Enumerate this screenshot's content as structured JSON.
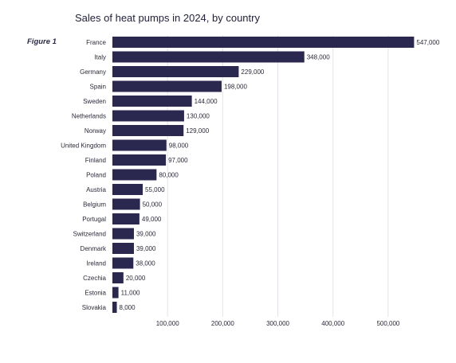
{
  "figure_label": "Figure 1",
  "chart_data": {
    "type": "bar",
    "orientation": "horizontal",
    "title": "Sales of heat pumps in 2024, by country",
    "xlabel": "",
    "ylabel": "",
    "categories": [
      "France",
      "Italy",
      "Germany",
      "Spain",
      "Sweden",
      "Netherlands",
      "Norway",
      "United Kingdom",
      "Finland",
      "Poland",
      "Austria",
      "Belgium",
      "Portugal",
      "Switzerland",
      "Denmark",
      "Ireland",
      "Czechia",
      "Estonia",
      "Slovakia"
    ],
    "values": [
      547000,
      348000,
      229000,
      198000,
      144000,
      130000,
      129000,
      98000,
      97000,
      80000,
      55000,
      50000,
      49000,
      39000,
      39000,
      38000,
      20000,
      11000,
      8000
    ],
    "value_labels": [
      "547,000",
      "348,000",
      "229,000",
      "198,000",
      "144,000",
      "130,000",
      "129,000",
      "98,000",
      "97,000",
      "80,000",
      "55,000",
      "50,000",
      "49,000",
      "39,000",
      "39,000",
      "38,000",
      "20,000",
      "11,000",
      "8,000"
    ],
    "xticks": [
      100000,
      200000,
      300000,
      400000,
      500000
    ],
    "xtick_labels": [
      "100,000",
      "200,000",
      "300,000",
      "400,000",
      "500,000"
    ],
    "xlim": [
      0,
      547000
    ],
    "grid": true,
    "bar_color": "#2b2850"
  }
}
